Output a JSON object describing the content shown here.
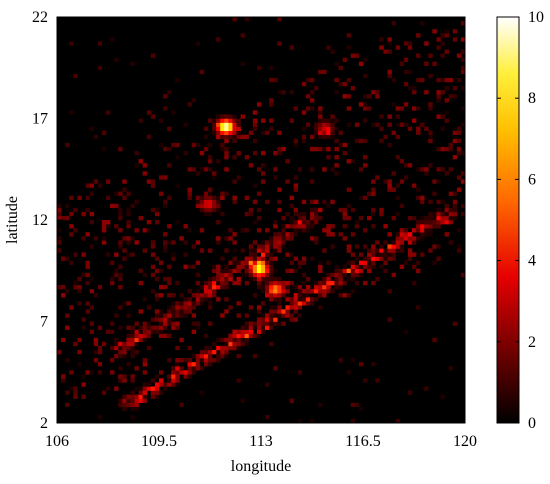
{
  "chart_data": {
    "type": "heatmap",
    "xlabel": "longitude",
    "ylabel": "latitude",
    "xlim": [
      106,
      120
    ],
    "ylim": [
      2,
      22
    ],
    "xticks": [
      106,
      109.5,
      113,
      116.5,
      120
    ],
    "xtick_labels": [
      "106",
      "109.5",
      "113",
      "116.5",
      "120"
    ],
    "yticks": [
      2,
      7,
      12,
      17,
      22
    ],
    "ytick_labels": [
      "2",
      "7",
      "12",
      "17",
      "22"
    ],
    "colorbar": {
      "range": [
        0,
        10
      ],
      "ticks": [
        0,
        2,
        4,
        6,
        8,
        10
      ],
      "tick_labels": [
        "0",
        "2",
        "4",
        "6",
        "8",
        "10"
      ],
      "colormap": "hot (black-red-orange-yellow-white)"
    },
    "background_value": 0,
    "hotspots": [
      {
        "lon": 111.8,
        "lat": 16.6,
        "peak": 10
      },
      {
        "lon": 112.95,
        "lat": 9.6,
        "peak": 8.5
      },
      {
        "lon": 113.5,
        "lat": 8.6,
        "peak": 6
      },
      {
        "lon": 111.2,
        "lat": 12.8,
        "peak": 3.5
      },
      {
        "lon": 115.2,
        "lat": 16.5,
        "peak": 3
      }
    ],
    "shipping_lanes": [
      {
        "from": [
          108.5,
          3.0
        ],
        "to": [
          119.5,
          12.4
        ],
        "intensity": 3
      },
      {
        "from": [
          108.2,
          5.6
        ],
        "to": [
          114.8,
          12.2
        ],
        "intensity": 2
      }
    ],
    "grid": false
  }
}
